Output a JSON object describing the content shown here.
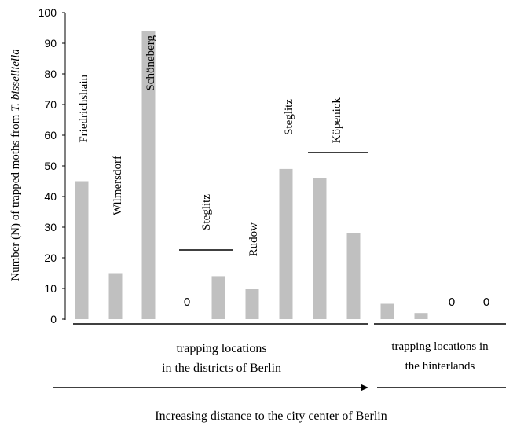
{
  "chart_data": {
    "type": "bar",
    "ylabel_prefix": "Number (N) of trapped moths from ",
    "ylabel_species": "T. bisselliella",
    "ylim": [
      0,
      100
    ],
    "yticks": [
      "0",
      "10",
      "20",
      "30",
      "40",
      "50",
      "60",
      "70",
      "80",
      "90",
      "100"
    ],
    "grid": false,
    "bar_color": "#c0c0c0",
    "values": [
      45,
      15,
      94,
      0,
      14,
      10,
      49,
      46,
      28,
      5,
      2,
      0,
      0
    ],
    "zero_labels": [
      "0",
      "0",
      "0"
    ],
    "bar_labels": {
      "friedrichshain": "Friedrichshain",
      "wilmersdorf": "Wilmersdorf",
      "schoneberg": "Schöneberg",
      "steglitz_a": "Steglitz",
      "rudow": "Rudow",
      "steglitz_b": "Steglitz",
      "kopenick": "Köpenick"
    },
    "groups": {
      "berlin_line1": "trapping locations",
      "berlin_line2": "in the districts of Berlin",
      "hinterland_line1": "trapping locations in",
      "hinterland_line2": "the hinterlands"
    },
    "xlabel": "Increasing distance to the city center of Berlin"
  }
}
